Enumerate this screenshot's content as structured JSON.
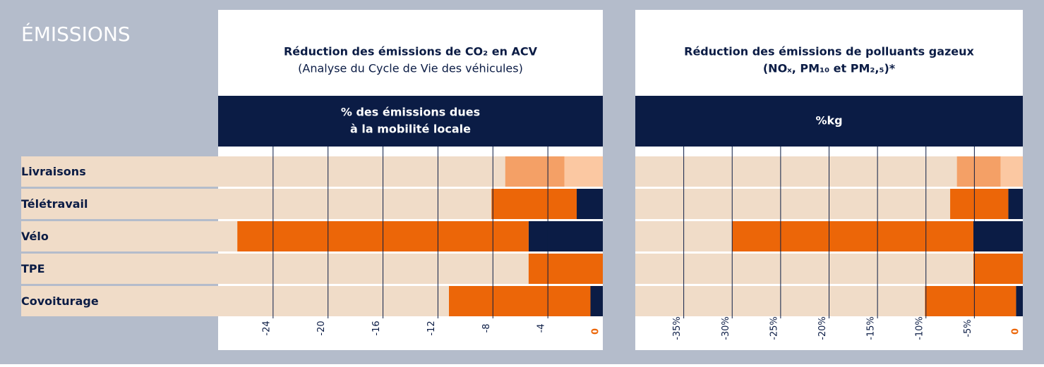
{
  "header": {
    "title": "ÉMISSIONS"
  },
  "chart_data": [
    {
      "type": "stacked-barh",
      "title": "Réduction des émissions de CO₂ en ACV",
      "subtitle": "(Analyse du Cycle de Vie des véhicules)",
      "axis_title": [
        "% des émissions dues",
        "à la mobilité locale"
      ],
      "categories": [
        "Livraisons",
        "Télétravail",
        "Vélo",
        "TPE",
        "Covoiturage"
      ],
      "xlim": [
        -28,
        0
      ],
      "xticks": [
        -24,
        -20,
        -16,
        -12,
        -8,
        -4,
        0
      ],
      "grid": true,
      "series": [
        {
          "colors": [
            "#fbc8a2",
            "#0b1c45",
            "#0b1c45",
            "#0b1c45",
            "#0b1c45"
          ],
          "values": [
            -2.8,
            -1.9,
            -5.4,
            0,
            -0.9
          ]
        },
        {
          "colors": [
            "#f4a066",
            "#ec6608",
            "#ec6608",
            "#ec6608",
            "#ec6608"
          ],
          "values": [
            -4.3,
            -6.2,
            -21.2,
            -5.4,
            -10.3
          ]
        }
      ]
    },
    {
      "type": "stacked-barh",
      "title": [
        "Réduction des émissions de polluants gazeux",
        "(NOₓ, PM₁₀ et PM₂,₅)*"
      ],
      "axis_title": [
        "%kg"
      ],
      "xlim": [
        -40,
        0
      ],
      "xticks": [
        {
          "value": -35,
          "label": "-35%"
        },
        {
          "value": -30,
          "label": "-30%"
        },
        {
          "value": -25,
          "label": "-25%"
        },
        {
          "value": -20,
          "label": "-20%"
        },
        {
          "value": -15,
          "label": "-15%"
        },
        {
          "value": -10,
          "label": "-10%"
        },
        {
          "value": -5,
          "label": "-5%"
        },
        0
      ],
      "grid": true,
      "series": [
        {
          "colors": [
            "#fbc8a2",
            "#0b1c45",
            "#0b1c45",
            "#0b1c45",
            "#0b1c45"
          ],
          "values": [
            -2.3,
            -1.5,
            -5.1,
            0,
            -0.7
          ]
        },
        {
          "colors": [
            "#f4a066",
            "#ec6608",
            "#ec6608",
            "#ec6608",
            "#ec6608"
          ],
          "values": [
            -4.5,
            -6.0,
            -24.9,
            -5.1,
            -9.4
          ]
        }
      ]
    }
  ]
}
